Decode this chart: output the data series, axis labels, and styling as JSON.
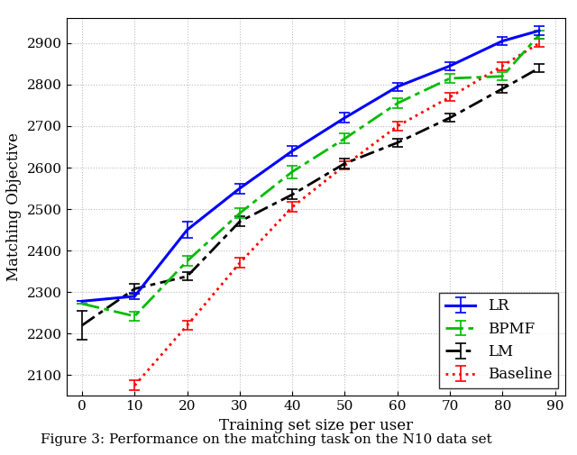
{
  "title": "",
  "xlabel": "Training set size per user",
  "ylabel": "Matching Objective",
  "xlim": [
    -3,
    92
  ],
  "ylim": [
    2050,
    2960
  ],
  "yticks": [
    2100,
    2200,
    2300,
    2400,
    2500,
    2600,
    2700,
    2800,
    2900
  ],
  "xticks": [
    0,
    10,
    20,
    30,
    40,
    50,
    60,
    70,
    80,
    90
  ],
  "LR": {
    "x": [
      0,
      10,
      20,
      30,
      40,
      50,
      60,
      70,
      80,
      87
    ],
    "y": [
      2278,
      2290,
      2450,
      2550,
      2640,
      2720,
      2795,
      2845,
      2905,
      2930
    ],
    "yerr": [
      0,
      8,
      20,
      12,
      12,
      12,
      10,
      10,
      10,
      10
    ],
    "color": "#0000FF",
    "linestyle": "-",
    "linewidth": 2.2,
    "label": "LR"
  },
  "BPMF": {
    "x": [
      0,
      10,
      20,
      30,
      40,
      50,
      60,
      70,
      80,
      87
    ],
    "y": [
      2272,
      2242,
      2375,
      2490,
      2590,
      2670,
      2755,
      2815,
      2820,
      2920
    ],
    "yerr": [
      0,
      10,
      12,
      12,
      15,
      12,
      12,
      10,
      10,
      10
    ],
    "color": "#00BB00",
    "linewidth": 2.0,
    "label": "BPMF"
  },
  "LM": {
    "x": [
      0,
      10,
      20,
      30,
      40,
      50,
      60,
      70,
      80,
      87
    ],
    "y": [
      2220,
      2308,
      2338,
      2470,
      2535,
      2610,
      2660,
      2720,
      2790,
      2840
    ],
    "yerr": [
      35,
      12,
      10,
      12,
      12,
      12,
      10,
      10,
      10,
      10
    ],
    "color": "#000000",
    "linewidth": 2.0,
    "label": "LM"
  },
  "Baseline": {
    "x": [
      10,
      20,
      30,
      40,
      50,
      60,
      70,
      80,
      87
    ],
    "y": [
      2075,
      2220,
      2370,
      2505,
      2605,
      2700,
      2770,
      2845,
      2900
    ],
    "yerr": [
      12,
      10,
      12,
      12,
      10,
      10,
      10,
      10,
      10
    ],
    "color": "#FF0000",
    "linewidth": 2.0,
    "label": "Baseline"
  },
  "legend_loc": "lower right",
  "legend_fontsize": 12,
  "axis_fontsize": 12,
  "tick_fontsize": 11,
  "background_color": "#ffffff",
  "grid_color": "#bbbbbb",
  "capsize": 4,
  "caption": "Figure 3: Performance on the matching task on the N10 data set"
}
